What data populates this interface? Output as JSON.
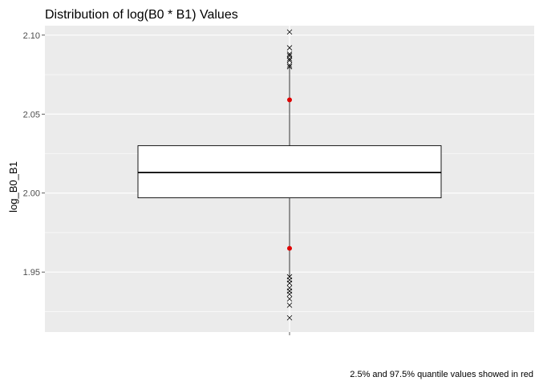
{
  "chart_data": {
    "type": "box",
    "title": "Distribution of log(B0 * B1) Values",
    "ylabel": "log_B0_B1",
    "xlabel": "",
    "caption": "2.5% and 97.5% quantile values showed in red",
    "ylim": [
      1.912,
      2.106
    ],
    "yticks": [
      1.95,
      2.0,
      2.05,
      2.1
    ],
    "ytick_labels": [
      "1.95",
      "2.00",
      "2.05",
      "2.10"
    ],
    "grid": true,
    "box": {
      "lower_whisker": 1.947,
      "q1": 1.997,
      "median": 2.013,
      "q3": 2.03,
      "upper_whisker": 2.08
    },
    "outliers": [
      2.102,
      2.092,
      2.088,
      2.087,
      2.085,
      2.084,
      2.081,
      2.08,
      1.947,
      1.945,
      1.943,
      1.94,
      1.938,
      1.936,
      1.933,
      1.929,
      1.921
    ],
    "quantiles": [
      {
        "label": "2.5%",
        "value": 1.965
      },
      {
        "label": "97.5%",
        "value": 2.059
      }
    ],
    "colors": {
      "panel_bg": "#ebebeb",
      "grid": "#ffffff",
      "box_fill": "#ffffff",
      "box_stroke": "#000000",
      "quantile": "#e00000",
      "tick_label": "#4d4d4d"
    }
  }
}
